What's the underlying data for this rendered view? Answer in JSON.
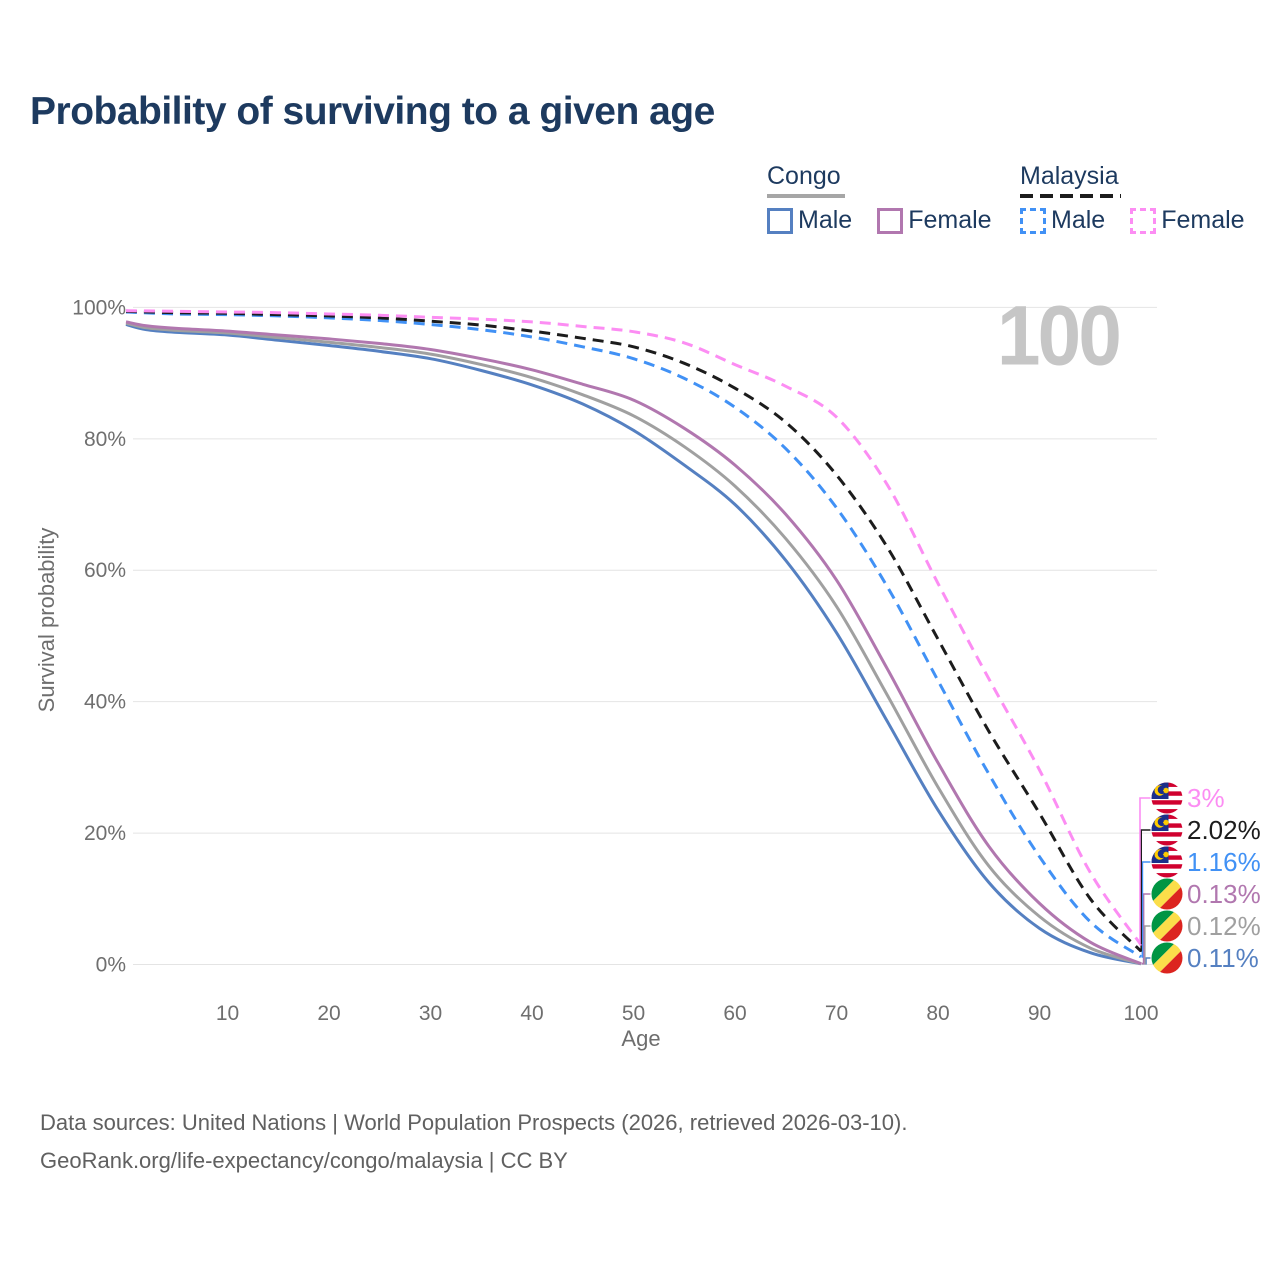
{
  "title": "Probability of surviving to a given age",
  "watermark": "100",
  "legend": {
    "groups": [
      {
        "country": "Congo",
        "underline_style": "solid",
        "underline_color": "#a6a6a6",
        "entries": [
          {
            "label": "Male",
            "color": "#5580c1",
            "dashed": false
          },
          {
            "label": "Female",
            "color": "#b177af",
            "dashed": false
          }
        ]
      },
      {
        "country": "Malaysia",
        "underline_style": "dashed",
        "underline_color": "#1c1c1c",
        "entries": [
          {
            "label": "Male",
            "color": "#4191f5",
            "dashed": true
          },
          {
            "label": "Female",
            "color": "#fc8df3",
            "dashed": true
          }
        ]
      }
    ]
  },
  "footer": {
    "line1": "Data sources: United Nations | World Population Prospects (2026, retrieved 2026-03-10).",
    "line2": "GeoRank.org/life-expectancy/congo/malaysia | CC BY"
  },
  "chart_data": {
    "type": "line",
    "title": "Probability of surviving to a given age",
    "xlabel": "Age",
    "ylabel": "Survival probability",
    "xlim": [
      0,
      100
    ],
    "ylim": [
      0,
      100
    ],
    "grid": "horizontal",
    "x_ticks": [
      10,
      20,
      30,
      40,
      50,
      60,
      70,
      80,
      90,
      100
    ],
    "y_ticks": [
      {
        "v": 0,
        "label": "0%"
      },
      {
        "v": 20,
        "label": "20%"
      },
      {
        "v": 40,
        "label": "40%"
      },
      {
        "v": 60,
        "label": "60%"
      },
      {
        "v": 80,
        "label": "80%"
      },
      {
        "v": 100,
        "label": "100%"
      }
    ],
    "series": [
      {
        "id": "congo-male",
        "name": "Congo Male",
        "country": "congo",
        "color": "#5580c1",
        "dashed": false,
        "end_label": "0.11%",
        "points": [
          [
            0,
            97.4
          ],
          [
            2,
            96.6
          ],
          [
            5,
            96.2
          ],
          [
            10,
            95.8
          ],
          [
            15,
            95.0
          ],
          [
            20,
            94.2
          ],
          [
            25,
            93.3
          ],
          [
            30,
            92.2
          ],
          [
            35,
            90.4
          ],
          [
            40,
            88.2
          ],
          [
            45,
            85.3
          ],
          [
            50,
            81.3
          ],
          [
            55,
            76.0
          ],
          [
            60,
            70.0
          ],
          [
            65,
            61.5
          ],
          [
            70,
            50.5
          ],
          [
            75,
            37.0
          ],
          [
            80,
            23.5
          ],
          [
            85,
            12.5
          ],
          [
            90,
            5.5
          ],
          [
            95,
            1.8
          ],
          [
            100,
            0.11
          ]
        ]
      },
      {
        "id": "congo-both",
        "name": "Congo Both sexes",
        "country": "congo",
        "color": "#a0a0a0",
        "dashed": false,
        "end_label": "0.12%",
        "points": [
          [
            0,
            97.6
          ],
          [
            2,
            96.9
          ],
          [
            5,
            96.5
          ],
          [
            10,
            96.1
          ],
          [
            15,
            95.4
          ],
          [
            20,
            94.7
          ],
          [
            25,
            93.9
          ],
          [
            30,
            92.9
          ],
          [
            35,
            91.3
          ],
          [
            40,
            89.3
          ],
          [
            45,
            86.7
          ],
          [
            50,
            83.5
          ],
          [
            55,
            78.8
          ],
          [
            60,
            72.8
          ],
          [
            65,
            64.8
          ],
          [
            70,
            54.5
          ],
          [
            75,
            41.0
          ],
          [
            80,
            27.0
          ],
          [
            85,
            15.0
          ],
          [
            90,
            7.3
          ],
          [
            95,
            2.5
          ],
          [
            100,
            0.12
          ]
        ]
      },
      {
        "id": "congo-female",
        "name": "Congo Female",
        "country": "congo",
        "color": "#b177af",
        "dashed": false,
        "end_label": "0.13%",
        "points": [
          [
            0,
            97.8
          ],
          [
            2,
            97.2
          ],
          [
            5,
            96.8
          ],
          [
            10,
            96.4
          ],
          [
            15,
            95.8
          ],
          [
            20,
            95.2
          ],
          [
            25,
            94.5
          ],
          [
            30,
            93.6
          ],
          [
            35,
            92.2
          ],
          [
            40,
            90.5
          ],
          [
            45,
            88.3
          ],
          [
            50,
            85.9
          ],
          [
            55,
            81.6
          ],
          [
            60,
            76.0
          ],
          [
            65,
            68.5
          ],
          [
            70,
            58.5
          ],
          [
            75,
            45.0
          ],
          [
            80,
            30.7
          ],
          [
            85,
            18.0
          ],
          [
            90,
            9.3
          ],
          [
            95,
            3.4
          ],
          [
            100,
            0.13
          ]
        ]
      },
      {
        "id": "malaysia-male",
        "name": "Malaysia Male",
        "country": "malaysia",
        "color": "#4191f5",
        "dashed": true,
        "end_label": "1.16%",
        "points": [
          [
            0,
            99.3
          ],
          [
            5,
            99.0
          ],
          [
            10,
            98.9
          ],
          [
            15,
            98.7
          ],
          [
            20,
            98.4
          ],
          [
            25,
            98.0
          ],
          [
            30,
            97.4
          ],
          [
            35,
            96.6
          ],
          [
            40,
            95.5
          ],
          [
            45,
            94.0
          ],
          [
            50,
            92.2
          ],
          [
            55,
            89.2
          ],
          [
            60,
            84.8
          ],
          [
            65,
            78.5
          ],
          [
            70,
            69.5
          ],
          [
            75,
            57.5
          ],
          [
            80,
            43.2
          ],
          [
            85,
            29.0
          ],
          [
            90,
            16.4
          ],
          [
            95,
            6.5
          ],
          [
            100,
            1.16
          ]
        ]
      },
      {
        "id": "malaysia-both",
        "name": "Malaysia Both sexes",
        "country": "malaysia",
        "color": "#1c1c1c",
        "dashed": true,
        "end_label": "2.02%",
        "points": [
          [
            0,
            99.4
          ],
          [
            5,
            99.2
          ],
          [
            10,
            99.1
          ],
          [
            15,
            98.9
          ],
          [
            20,
            98.7
          ],
          [
            25,
            98.4
          ],
          [
            30,
            97.9
          ],
          [
            35,
            97.3
          ],
          [
            40,
            96.4
          ],
          [
            45,
            95.3
          ],
          [
            50,
            94.0
          ],
          [
            55,
            91.5
          ],
          [
            60,
            87.7
          ],
          [
            65,
            82.5
          ],
          [
            70,
            74.5
          ],
          [
            75,
            63.5
          ],
          [
            80,
            49.5
          ],
          [
            85,
            35.5
          ],
          [
            90,
            23.0
          ],
          [
            95,
            10.0
          ],
          [
            100,
            2.02
          ]
        ]
      },
      {
        "id": "malaysia-female",
        "name": "Malaysia Female",
        "country": "malaysia",
        "color": "#fc8df3",
        "dashed": true,
        "end_label": "3%",
        "points": [
          [
            0,
            99.5
          ],
          [
            5,
            99.4
          ],
          [
            10,
            99.3
          ],
          [
            15,
            99.2
          ],
          [
            20,
            99.0
          ],
          [
            25,
            98.8
          ],
          [
            30,
            98.5
          ],
          [
            35,
            98.2
          ],
          [
            40,
            97.8
          ],
          [
            45,
            97.1
          ],
          [
            50,
            96.3
          ],
          [
            55,
            94.6
          ],
          [
            60,
            91.3
          ],
          [
            65,
            88.0
          ],
          [
            70,
            83.3
          ],
          [
            75,
            73.0
          ],
          [
            80,
            58.0
          ],
          [
            85,
            43.5
          ],
          [
            90,
            29.6
          ],
          [
            95,
            14.0
          ],
          [
            100,
            3.0
          ]
        ]
      }
    ]
  }
}
